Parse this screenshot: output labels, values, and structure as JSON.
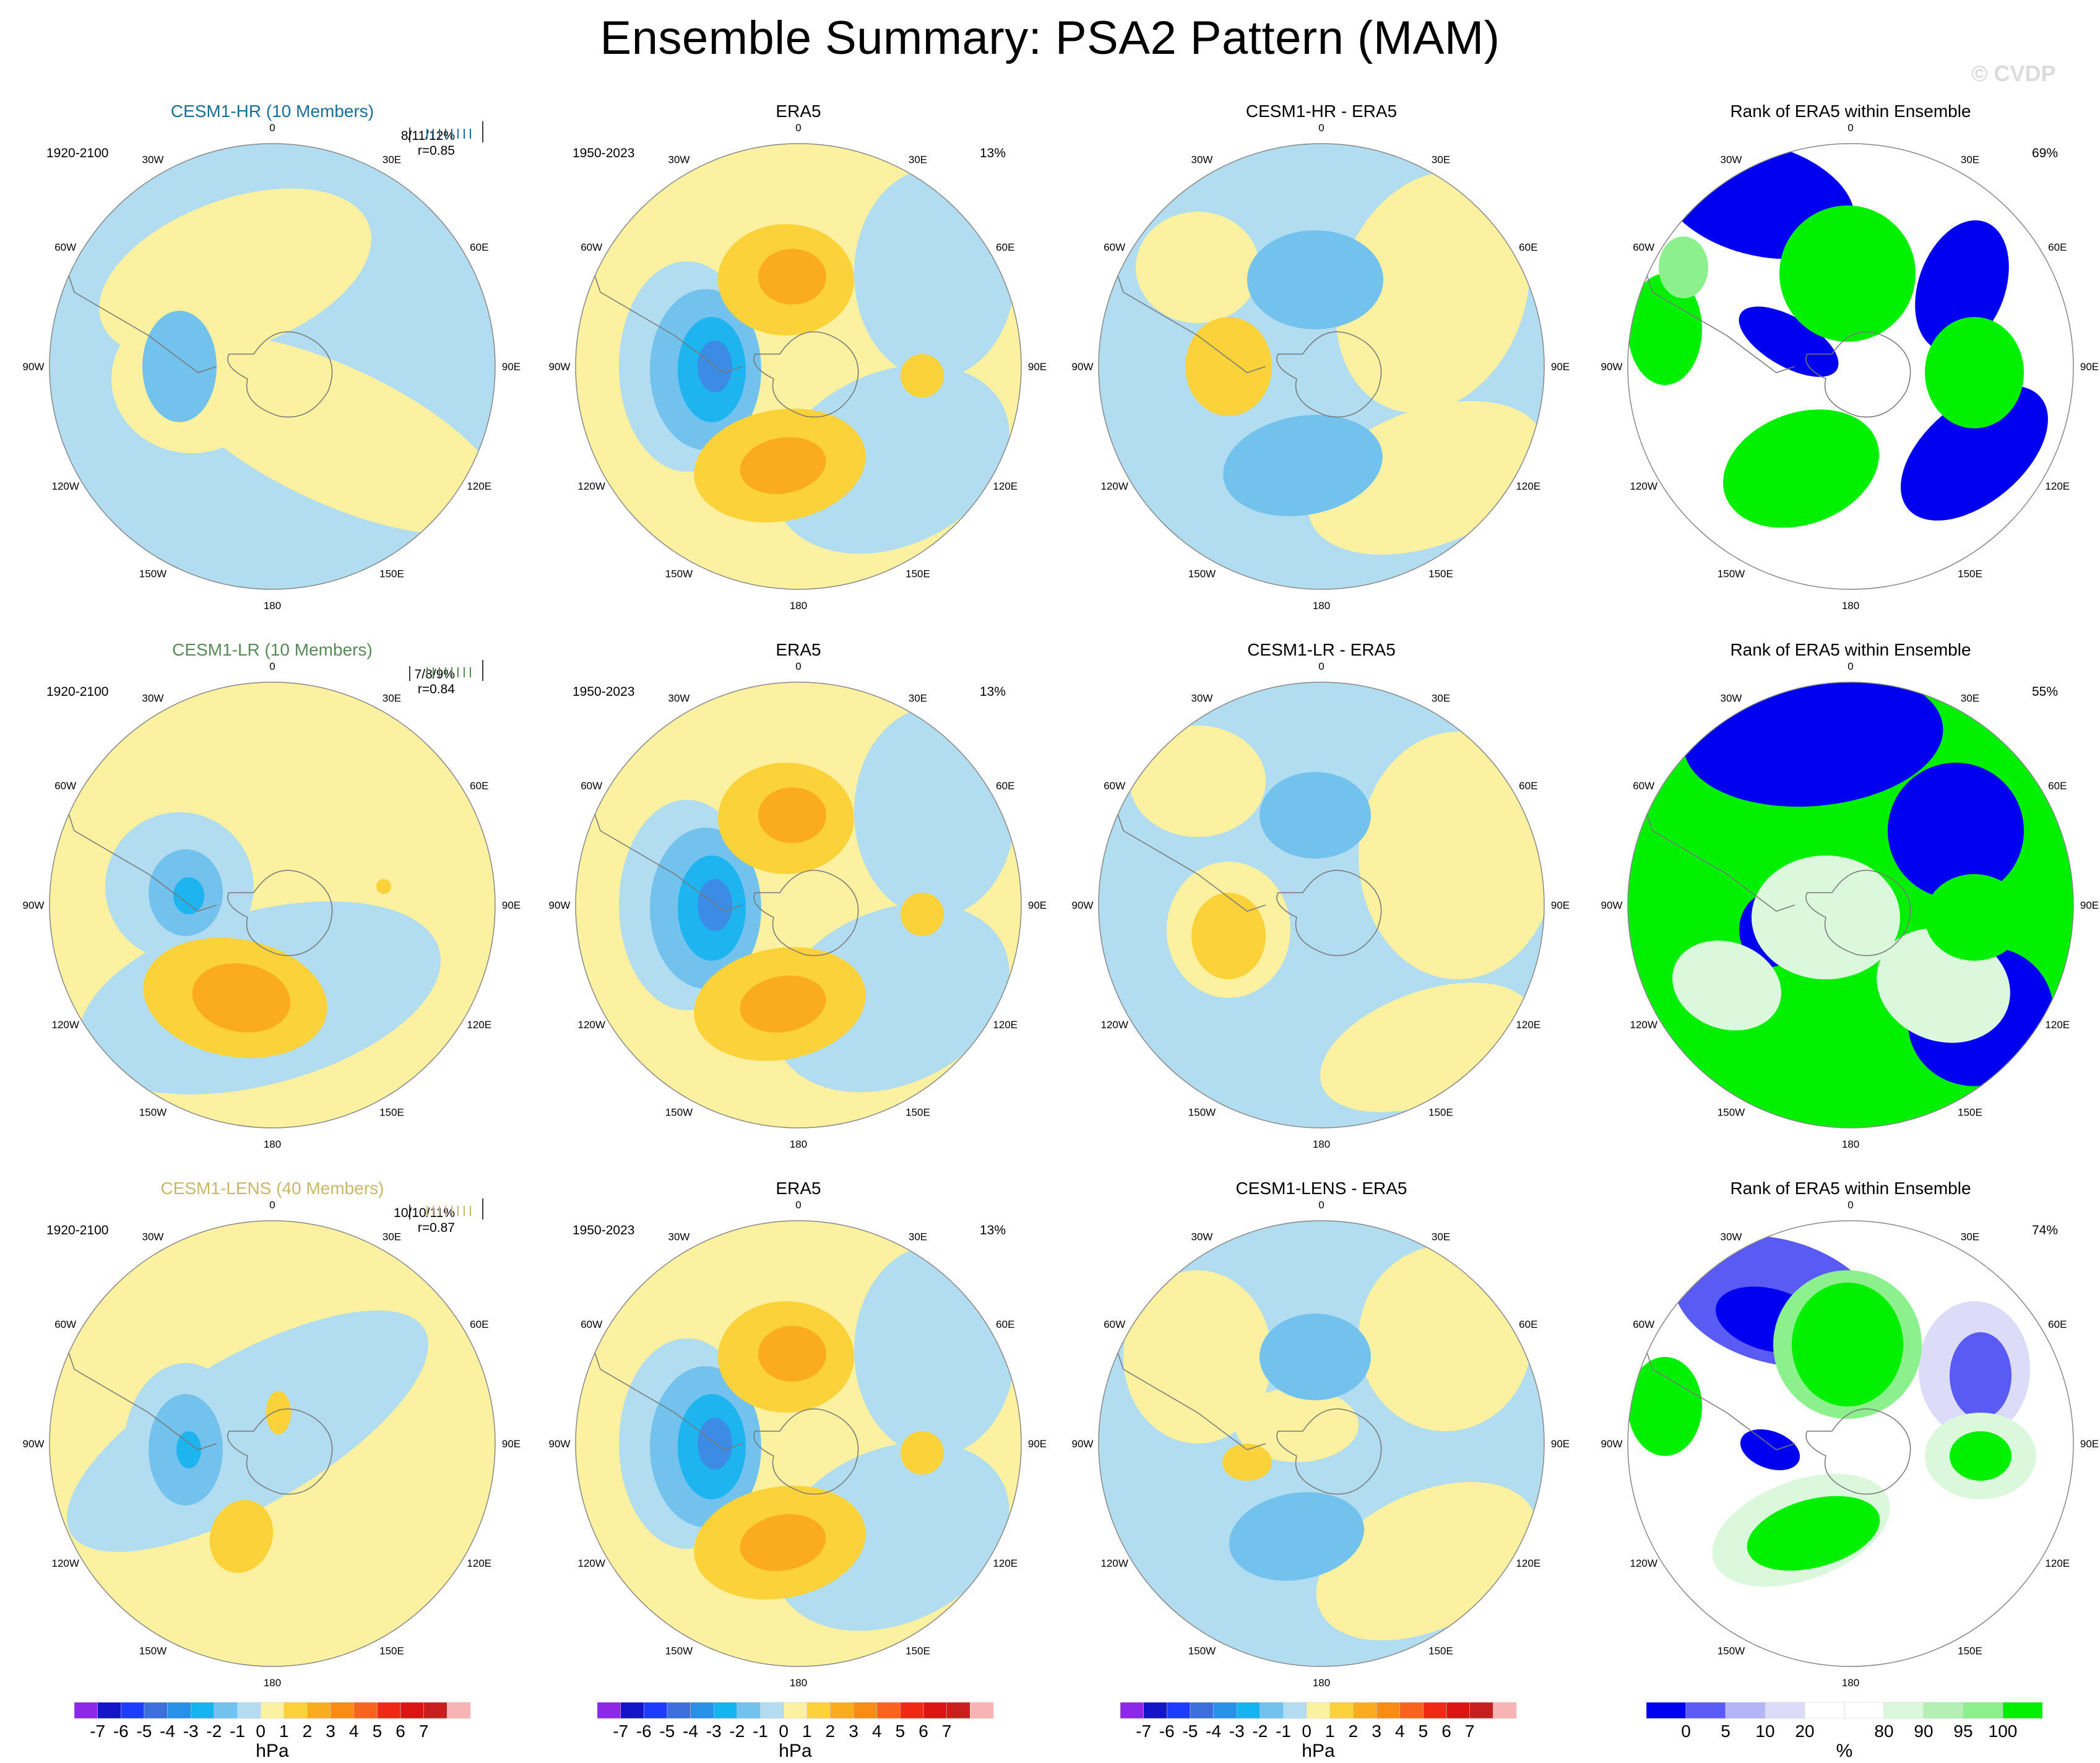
{
  "title": "Ensemble Summary: PSA2 Pattern (MAM)",
  "watermark": "© CVDP",
  "longitude_labels": [
    "0",
    "30E",
    "60E",
    "90E",
    "120E",
    "150E",
    "180",
    "150W",
    "120W",
    "90W",
    "60W",
    "30W"
  ],
  "colors": {
    "blue_light": "#b2dcf0",
    "blue_mid": "#73c2ee",
    "blue_deep": "#1eb4f0",
    "blue_core": "#3c8ce6",
    "yellow_light": "#fbf1a0",
    "yellow_mid": "#fcd23b",
    "orange": "#fbac1e",
    "orange_deep": "#f8941e",
    "rank_blue": "#0000f0",
    "rank_blue_mid": "#5a5af5",
    "rank_blue_light": "#dcdcf8",
    "rank_green": "#00f000",
    "rank_green_mid": "#8cf08c",
    "rank_green_light": "#dcf8dc"
  },
  "rows": [
    {
      "model": {
        "title": "CESM1-HR (10 Members)",
        "title_color": "#1a6e96",
        "years": "1920-2100",
        "stat": "8/11/12%",
        "corr": "r=0.85"
      },
      "obs": {
        "title": "ERA5",
        "years": "1950-2023",
        "pct": "13%"
      },
      "diff": {
        "title": "CESM1-HR - ERA5"
      },
      "rank": {
        "title": "Rank of ERA5 within Ensemble",
        "pct": "69%"
      }
    },
    {
      "model": {
        "title": "CESM1-LR (10 Members)",
        "title_color": "#5a8a5a",
        "years": "1920-2100",
        "stat": "7/8/9%",
        "corr": "r=0.84"
      },
      "obs": {
        "title": "ERA5",
        "years": "1950-2023",
        "pct": "13%"
      },
      "diff": {
        "title": "CESM1-LR - ERA5"
      },
      "rank": {
        "title": "Rank of ERA5 within Ensemble",
        "pct": "55%"
      }
    },
    {
      "model": {
        "title": "CESM1-LENS (40 Members)",
        "title_color": "#c8b86c",
        "years": "1920-2100",
        "stat": "10/10/11%",
        "corr": "r=0.87"
      },
      "obs": {
        "title": "ERA5",
        "years": "1950-2023",
        "pct": "13%"
      },
      "diff": {
        "title": "CESM1-LENS - ERA5"
      },
      "rank": {
        "title": "Rank of ERA5 within Ensemble",
        "pct": "74%"
      }
    }
  ],
  "colorbar_hpa": {
    "colors": [
      "#8c28e6",
      "#1414c8",
      "#1e3cff",
      "#3c6edc",
      "#2890e6",
      "#14b4f0",
      "#73c2ee",
      "#b4dcf0",
      "#fbf1a0",
      "#fcd23b",
      "#fbac1e",
      "#f88c14",
      "#f8641e",
      "#f02814",
      "#dc1414",
      "#c81e1e",
      "#f8b4b4"
    ],
    "labels": [
      "-7",
      "-6",
      "-5",
      "-4",
      "-3",
      "-2",
      "-1",
      "0",
      "1",
      "2",
      "3",
      "4",
      "5",
      "6",
      "7"
    ],
    "unit": "hPa"
  },
  "colorbar_rank": {
    "colors": [
      "#0000f0",
      "#5a5af5",
      "#b4b4f8",
      "#dcdcf8",
      "#ffffff",
      "#ffffff",
      "#dcf8dc",
      "#b4f0b4",
      "#8cf08c",
      "#00f000"
    ],
    "labels": [
      "0",
      "5",
      "10",
      "20",
      "80",
      "90",
      "95",
      "100"
    ],
    "unit": "%"
  }
}
